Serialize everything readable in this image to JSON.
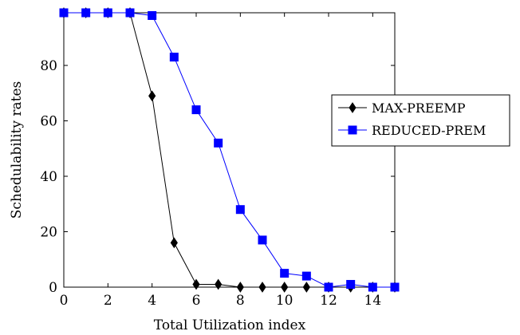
{
  "chart_data": {
    "type": "line",
    "xlabel": "Total Utilization index",
    "ylabel": "Schedulability rates",
    "xlim": [
      0,
      15
    ],
    "ylim": [
      0,
      99
    ],
    "x_ticks": [
      0,
      2,
      4,
      6,
      8,
      10,
      12,
      14
    ],
    "y_ticks": [
      0,
      20,
      40,
      60,
      80
    ],
    "grid": false,
    "legend_position": "right",
    "x": [
      0,
      1,
      2,
      3,
      4,
      5,
      6,
      7,
      8,
      9,
      10,
      11,
      12,
      13,
      14,
      15
    ],
    "series": [
      {
        "name": "MAX-PREEMP",
        "color": "#000000",
        "marker": "diamond",
        "values": [
          99,
          99,
          99,
          99,
          69,
          16,
          1,
          1,
          0,
          0,
          0,
          0,
          0,
          0,
          0,
          0
        ]
      },
      {
        "name": "REDUCED-PREM",
        "color": "#0000ff",
        "marker": "square",
        "values": [
          99,
          99,
          99,
          99,
          98,
          83,
          64,
          52,
          28,
          17,
          5,
          4,
          0,
          1,
          0,
          0
        ]
      }
    ]
  }
}
